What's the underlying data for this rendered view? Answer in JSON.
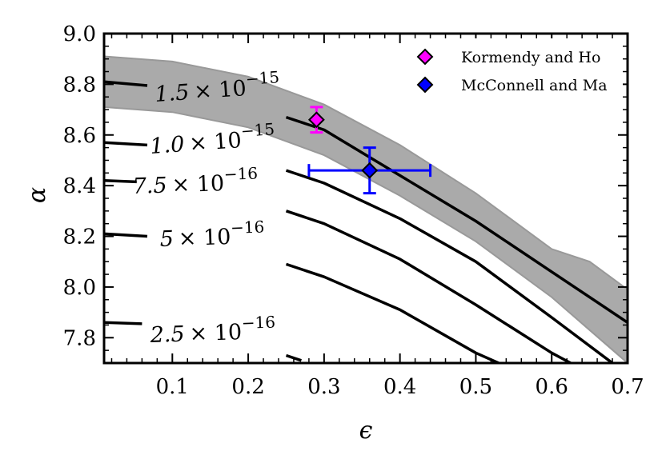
{
  "chart_data": {
    "type": "line",
    "xlabel": "ϵ",
    "ylabel": "α",
    "xlim": [
      0.01,
      0.7
    ],
    "ylim": [
      7.7,
      9.0
    ],
    "x_ticks": [
      0.1,
      0.2,
      0.3,
      0.4,
      0.5,
      0.6,
      0.7
    ],
    "x_tick_labels": [
      "0.1",
      "0.2",
      "0.3",
      "0.4",
      "0.5",
      "0.6",
      "0.7"
    ],
    "y_ticks": [
      7.8,
      8.0,
      8.2,
      8.4,
      8.6,
      8.8,
      9.0
    ],
    "y_tick_labels": [
      "7.8",
      "8.0",
      "8.2",
      "8.4",
      "8.6",
      "8.8",
      "9.0"
    ],
    "band": {
      "name": "shaded region",
      "upper": [
        [
          0.01,
          8.91
        ],
        [
          0.1,
          8.89
        ],
        [
          0.2,
          8.83
        ],
        [
          0.3,
          8.72
        ],
        [
          0.4,
          8.56
        ],
        [
          0.5,
          8.37
        ],
        [
          0.6,
          8.15
        ],
        [
          0.65,
          8.1
        ],
        [
          0.7,
          7.99
        ]
      ],
      "lower": [
        [
          0.01,
          8.71
        ],
        [
          0.1,
          8.69
        ],
        [
          0.2,
          8.63
        ],
        [
          0.3,
          8.52
        ],
        [
          0.4,
          8.36
        ],
        [
          0.5,
          8.18
        ],
        [
          0.6,
          7.96
        ],
        [
          0.7,
          7.7
        ]
      ]
    },
    "contours": [
      {
        "name": "1.5e-15",
        "label_parts": [
          "1.5",
          "× 10",
          "−15"
        ],
        "left_segment": [
          [
            0.01,
            8.81
          ],
          [
            0.067,
            8.795
          ]
        ],
        "right_segment": [
          [
            0.25,
            8.67
          ],
          [
            0.3,
            8.62
          ],
          [
            0.4,
            8.44
          ],
          [
            0.5,
            8.26
          ],
          [
            0.6,
            8.06
          ],
          [
            0.7,
            7.86
          ]
        ]
      },
      {
        "name": "1.0e-15",
        "label_parts": [
          "1.0",
          "× 10",
          "−15"
        ],
        "left_segment": [
          [
            0.01,
            8.57
          ],
          [
            0.067,
            8.56
          ]
        ],
        "right_segment": [
          [
            0.25,
            8.46
          ],
          [
            0.3,
            8.41
          ],
          [
            0.4,
            8.27
          ],
          [
            0.5,
            8.1
          ],
          [
            0.6,
            7.88
          ],
          [
            0.68,
            7.7
          ]
        ]
      },
      {
        "name": "7.5e-16",
        "label_parts": [
          "7.5",
          "× 10",
          "−16"
        ],
        "left_segment": [
          [
            0.01,
            8.42
          ],
          [
            0.053,
            8.415
          ]
        ],
        "right_segment": [
          [
            0.25,
            8.3
          ],
          [
            0.3,
            8.25
          ],
          [
            0.4,
            8.11
          ],
          [
            0.5,
            7.93
          ],
          [
            0.6,
            7.74
          ],
          [
            0.625,
            7.7
          ]
        ]
      },
      {
        "name": "5e-16",
        "label_parts": [
          "5",
          "× 10",
          "−16"
        ],
        "left_segment": [
          [
            0.01,
            8.21
          ],
          [
            0.067,
            8.2
          ]
        ],
        "right_segment": [
          [
            0.25,
            8.09
          ],
          [
            0.3,
            8.04
          ],
          [
            0.4,
            7.91
          ],
          [
            0.5,
            7.74
          ],
          [
            0.53,
            7.7
          ]
        ]
      },
      {
        "name": "2.5e-16",
        "label_parts": [
          "2.5",
          "× 10",
          "−16"
        ],
        "left_segment": [
          [
            0.01,
            7.86
          ],
          [
            0.06,
            7.855
          ]
        ],
        "right_segment": [
          [
            0.25,
            7.73
          ],
          [
            0.27,
            7.71
          ]
        ]
      }
    ],
    "points": [
      {
        "name": "Kormendy and Ho",
        "x": 0.29,
        "y": 8.66,
        "xerr": 0,
        "yerr": 0.05,
        "color": "#ff00ff",
        "errcolor": "#ff00ff"
      },
      {
        "name": "McConnell and Ma",
        "x": 0.36,
        "y": 8.46,
        "xerr": 0.08,
        "yerr": 0.09,
        "color": "#0000ff",
        "errcolor": "#0000ff"
      }
    ],
    "legend_position": "top-right",
    "colors": {
      "band_fill": "#aaaaaa",
      "band_edge": "#999999",
      "contour": "#000000"
    }
  }
}
